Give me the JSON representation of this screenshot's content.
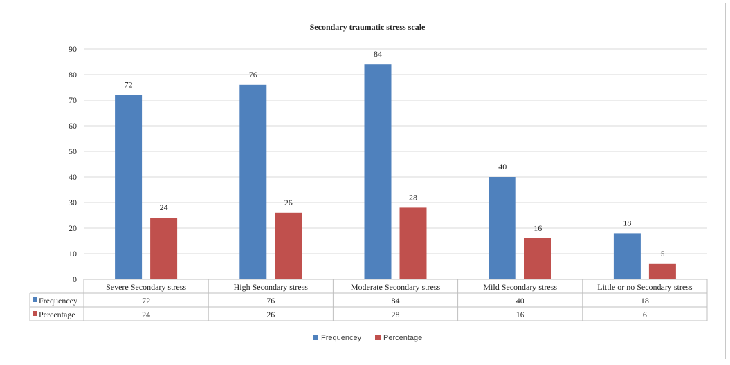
{
  "chart_data": {
    "type": "bar",
    "title": "Secondary traumatic stress scale",
    "categories": [
      "Severe Secondary stress",
      "High Secondary stress",
      "Moderate Secondary stress",
      "Mild Secondary stress",
      "Little or no Secondary stress"
    ],
    "series": [
      {
        "name": "Frequencey",
        "color": "#4f81bd",
        "values": [
          72,
          76,
          84,
          40,
          18
        ]
      },
      {
        "name": "Percentage",
        "color": "#c0504d",
        "values": [
          24,
          26,
          28,
          16,
          6
        ]
      }
    ],
    "y_ticks": [
      "0",
      "10",
      "20",
      "30",
      "40",
      "50",
      "60",
      "70",
      "80",
      "90"
    ],
    "ylim": [
      0,
      90
    ],
    "grid": true,
    "legend": "bottom",
    "data_table": true,
    "table_rows": [
      {
        "label": "Frequencey",
        "cells": [
          "72",
          "76",
          "84",
          "40",
          "18"
        ]
      },
      {
        "label": "Percentage",
        "cells": [
          "24",
          "26",
          "28",
          "16",
          "6"
        ]
      }
    ],
    "bar_labels": [
      [
        "72",
        "76",
        "84",
        "40",
        "18"
      ],
      [
        "24",
        "26",
        "28",
        "16",
        "6"
      ]
    ]
  }
}
